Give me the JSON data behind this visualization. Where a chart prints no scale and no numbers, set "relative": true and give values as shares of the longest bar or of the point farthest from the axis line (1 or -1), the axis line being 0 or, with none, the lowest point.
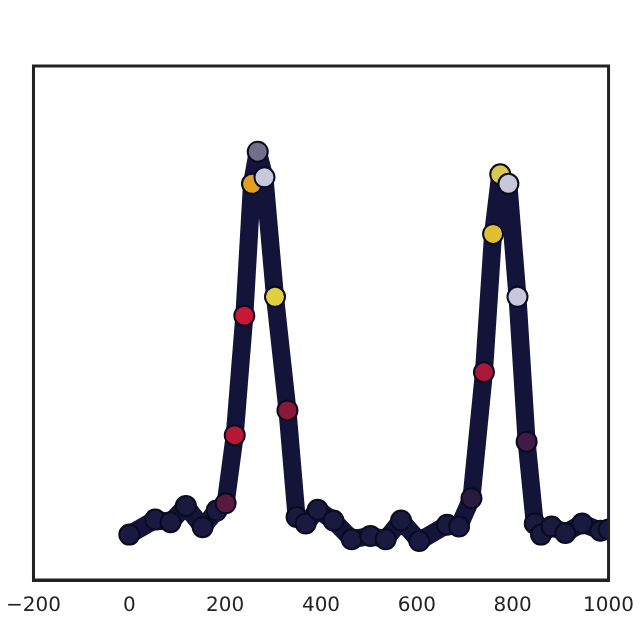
{
  "chart_data": {
    "type": "line",
    "relative": true,
    "marker": "circle",
    "grid": false,
    "tick_labels": "x",
    "legend": false,
    "xlim": [
      -200,
      1000
    ],
    "xticks": [
      -200,
      0,
      200,
      400,
      600,
      800,
      1000
    ],
    "series": [
      {
        "color": "#14143a",
        "x": [
          0,
          54,
          86,
          118,
          153,
          182,
          201,
          220,
          240,
          256,
          268,
          282,
          304,
          330,
          349,
          368,
          393,
          426,
          464,
          503,
          535,
          567,
          605,
          663,
          688,
          714,
          740,
          759,
          774,
          791,
          810,
          829,
          846,
          859,
          881,
          910,
          945,
          983,
          1000
        ],
        "values": [
          0.106,
          0.141,
          0.135,
          0.173,
          0.123,
          0.162,
          0.179,
          0.338,
          0.617,
          0.925,
          1,
          0.94,
          0.661,
          0.396,
          0.147,
          0.132,
          0.164,
          0.139,
          0.095,
          0.103,
          0.095,
          0.139,
          0.091,
          0.129,
          0.125,
          0.191,
          0.485,
          0.808,
          0.947,
          0.925,
          0.661,
          0.323,
          0.132,
          0.106,
          0.125,
          0.11,
          0.132,
          0.115,
          0.118
        ],
        "colors": [
          "#1a1a40",
          "#1a1a40",
          "#1a1a40",
          "#1a1a40",
          "#1a1a40",
          "#1a1a40",
          "#5a1a40",
          "#b81838",
          "#c81838",
          "#e0a020",
          "#70708a",
          "#c8c8dc",
          "#e0d040",
          "#8a1838",
          "#1a1a40",
          "#1a1a40",
          "#1a1a40",
          "#1a1a40",
          "#1a1a40",
          "#1a1a40",
          "#1a1a40",
          "#1a1a40",
          "#1a1a40",
          "#1a1a40",
          "#1a1a40",
          "#2a1a40",
          "#a81838",
          "#e0c030",
          "#d8c850",
          "#c8c8dc",
          "#c8c8dc",
          "#401a48",
          "#1a1a40",
          "#1a1a40",
          "#1a1a40",
          "#1a1a40",
          "#1a1a40",
          "#1a1a40",
          "#1a1a40"
        ]
      }
    ]
  }
}
